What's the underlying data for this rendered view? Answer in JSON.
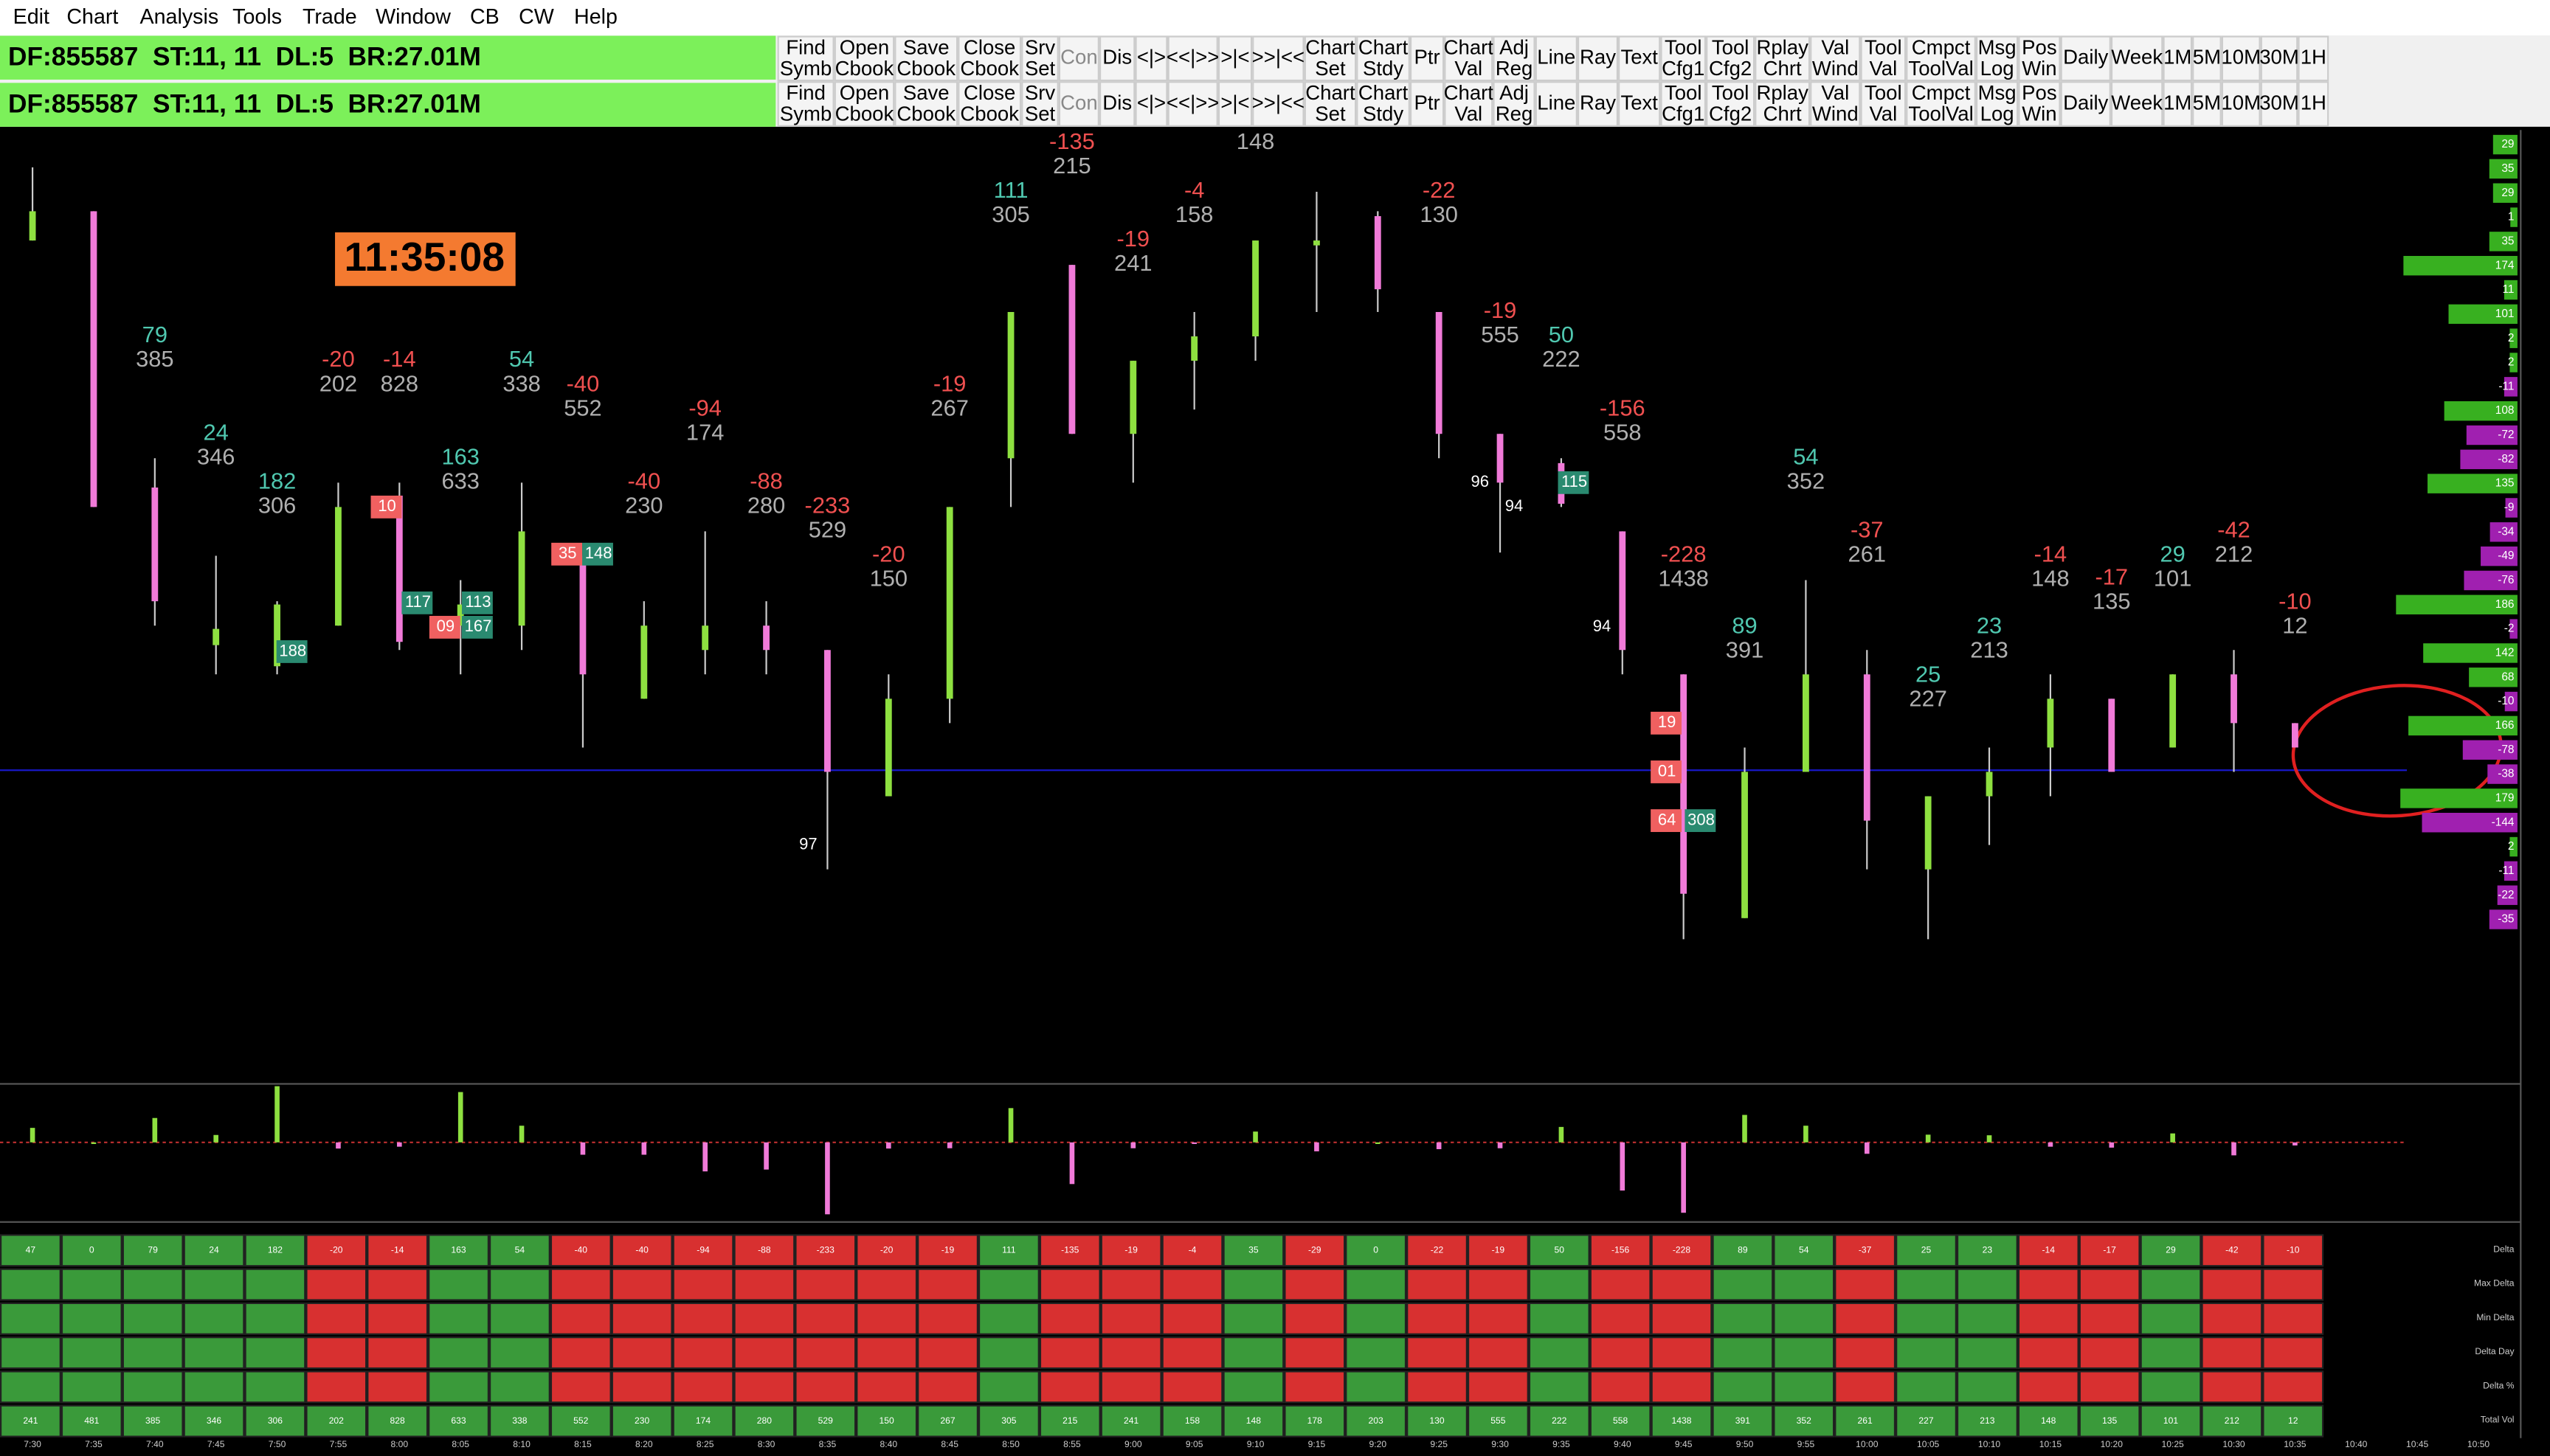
{
  "menu": [
    "Edit",
    "Chart",
    "Analysis",
    "Tools",
    "Trade",
    "Window",
    "CB",
    "CW",
    "Help"
  ],
  "status": "DF:855587  ST:11, 11  DL:5  BR:27.01M",
  "toolbar": [
    [
      "Find",
      "Symb"
    ],
    [
      "Open",
      "Cbook"
    ],
    [
      "Save",
      "Cbook"
    ],
    [
      "Close",
      "Cbook"
    ],
    [
      "Srv",
      "Set"
    ],
    [
      "Con"
    ],
    [
      "Dis"
    ],
    [
      "<|>"
    ],
    [
      "<<|>>"
    ],
    [
      ">|<"
    ],
    [
      ">>|<<"
    ],
    [
      "Chart",
      "Set"
    ],
    [
      "Chart",
      "Stdy"
    ],
    [
      "Ptr"
    ],
    [
      "Chart",
      "Val"
    ],
    [
      "Adj",
      "Reg"
    ],
    [
      "Line"
    ],
    [
      "Ray"
    ],
    [
      "Text"
    ],
    [
      "Tool",
      "Cfg1"
    ],
    [
      "Tool",
      "Cfg2"
    ],
    [
      "Rplay",
      "Chrt"
    ],
    [
      "Val",
      "Wind"
    ],
    [
      "Tool",
      "Val"
    ],
    [
      "Cmpct",
      "ToolVal"
    ],
    [
      "Msg",
      "Log"
    ],
    [
      "Pos",
      "Win"
    ],
    [
      "Daily"
    ],
    [
      "Week"
    ],
    [
      "1M"
    ],
    [
      "5M"
    ],
    [
      "10M"
    ],
    [
      "30M"
    ],
    [
      "1H"
    ]
  ],
  "clock": "11:35:08",
  "annotations": [
    null,
    null,
    {
      "delta": 79,
      "volume": 385
    },
    {
      "delta": 24,
      "volume": 346
    },
    {
      "delta": 182,
      "volume": 306
    },
    {
      "delta": -20,
      "volume": 202
    },
    {
      "delta": -14,
      "volume": 828
    },
    {
      "delta": 163,
      "volume": 633
    },
    {
      "delta": 54,
      "volume": 338
    },
    {
      "delta": -40,
      "volume": 552
    },
    {
      "delta": -40,
      "volume": 230
    },
    {
      "delta": -94,
      "volume": 174
    },
    {
      "delta": -88,
      "volume": 280
    },
    {
      "delta": -233,
      "volume": 529
    },
    {
      "delta": -20,
      "volume": 150
    },
    {
      "delta": -19,
      "volume": 267
    },
    {
      "delta": 111,
      "volume": 305
    },
    {
      "delta": -135,
      "volume": 215
    },
    {
      "delta": -19,
      "volume": 241
    },
    {
      "delta": -4,
      "volume": 158
    },
    {
      "volume": 148
    },
    null,
    null,
    {
      "delta": -22,
      "volume": 130
    },
    {
      "delta": -19,
      "volume": 555
    },
    {
      "delta": 50,
      "volume": 222
    },
    {
      "delta": -156,
      "volume": 558
    },
    {
      "delta": -228,
      "volume": 1438
    },
    {
      "delta": 89,
      "volume": 391
    },
    {
      "delta": 54,
      "volume": 352
    },
    {
      "delta": -37,
      "volume": 261
    },
    {
      "delta": 25,
      "volume": 227
    },
    {
      "delta": 23,
      "volume": 213
    },
    {
      "delta": -14,
      "volume": 148
    },
    {
      "delta": -17,
      "volume": 135
    },
    {
      "delta": 29,
      "volume": 101
    },
    {
      "delta": -42,
      "volume": 212
    },
    {
      "delta": -10,
      "volume": 12
    }
  ],
  "markers": [
    "10",
    "117",
    "113",
    "09",
    "167",
    "188",
    "35",
    "148",
    "115",
    "19",
    "01",
    "64",
    "308"
  ],
  "small_labels": [
    "97",
    "96",
    "94",
    "94"
  ],
  "profile": [
    29,
    35,
    29,
    1,
    35,
    174,
    11,
    101,
    2,
    2,
    -11,
    108,
    -72,
    -82,
    135,
    -9,
    -34,
    -49,
    -76,
    186,
    -2,
    142,
    68,
    -10,
    166,
    -78,
    -38,
    179,
    -144,
    2,
    -11,
    -22,
    -35
  ],
  "table": {
    "row_labels": [
      "Delta",
      "Max Delta",
      "Min Delta",
      "Delta Day",
      "Delta %",
      "Total Vol"
    ],
    "delta": [
      47,
      0,
      79,
      24,
      182,
      -20,
      -14,
      163,
      54,
      -40,
      -40,
      -94,
      -88,
      -233,
      -20,
      -19,
      111,
      -135,
      -19,
      -4,
      35,
      -29,
      0,
      -22,
      -19,
      50,
      -156,
      -228,
      89,
      54,
      -37,
      25,
      23,
      -14,
      -17,
      29,
      -42,
      -10
    ],
    "total_vol": [
      241,
      481,
      385,
      346,
      306,
      202,
      828,
      633,
      338,
      552,
      230,
      174,
      280,
      529,
      150,
      267,
      305,
      215,
      241,
      158,
      148,
      178,
      203,
      130,
      555,
      222,
      558,
      1438,
      391,
      352,
      261,
      227,
      213,
      148,
      135,
      101,
      212,
      12
    ]
  },
  "time_axis": [
    "7:30",
    "7:35",
    "7:40",
    "7:45",
    "7:50",
    "7:55",
    "8:00",
    "8:05",
    "8:10",
    "8:15",
    "8:20",
    "8:25",
    "8:30",
    "8:35",
    "8:40",
    "8:45",
    "8:50",
    "8:55",
    "9:00",
    "9:05",
    "9:10",
    "9:15",
    "9:20",
    "9:25",
    "9:30",
    "9:35",
    "9:40",
    "9:45",
    "9:50",
    "9:55",
    "10:00",
    "10:05",
    "10:10",
    "10:15",
    "10:20",
    "10:25",
    "10:30",
    "10:35",
    "10:40",
    "10:45",
    "10:50"
  ]
}
